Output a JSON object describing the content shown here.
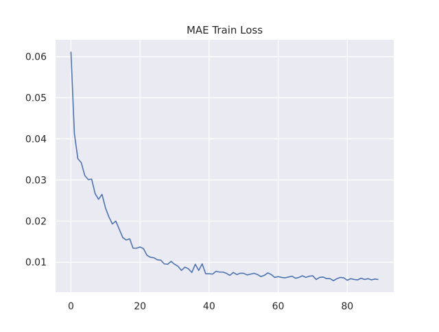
{
  "chart_data": {
    "type": "line",
    "title": "MAE Train Loss",
    "xlabel": "",
    "ylabel": "",
    "xlim": [
      -4.45,
      93.45
    ],
    "ylim": [
      0.0027,
      0.0641
    ],
    "xticks": [
      0,
      20,
      40,
      60,
      80
    ],
    "xtick_labels": [
      "0",
      "20",
      "40",
      "60",
      "80"
    ],
    "yticks": [
      0.01,
      0.02,
      0.03,
      0.04,
      0.05,
      0.06
    ],
    "ytick_labels": [
      "0.01",
      "0.02",
      "0.03",
      "0.04",
      "0.05",
      "0.06"
    ],
    "grid": true,
    "legend": "none",
    "colors": {
      "plot_background": "#eaeaf2",
      "grid": "#ffffff",
      "line": "#4c72b0"
    },
    "series": [
      {
        "x": [
          0,
          1,
          2,
          3,
          4,
          5,
          6,
          7,
          8,
          9,
          10,
          11,
          12,
          13,
          14,
          15,
          16,
          17,
          18,
          19,
          20,
          21,
          22,
          23,
          24,
          25,
          26,
          27,
          28,
          29,
          30,
          31,
          32,
          33,
          34,
          35,
          36,
          37,
          38,
          39,
          40,
          41,
          42,
          43,
          44,
          45,
          46,
          47,
          48,
          49,
          50,
          51,
          52,
          53,
          54,
          55,
          56,
          57,
          58,
          59,
          60,
          61,
          62,
          63,
          64,
          65,
          66,
          67,
          68,
          69,
          70,
          71,
          72,
          73,
          74,
          75,
          76,
          77,
          78,
          79,
          80,
          81,
          82,
          83,
          84,
          85,
          86,
          87,
          88,
          89
        ],
        "values": [
          0.0612,
          0.0413,
          0.0352,
          0.0342,
          0.0311,
          0.0301,
          0.0302,
          0.0267,
          0.0253,
          0.0265,
          0.0232,
          0.021,
          0.0193,
          0.02,
          0.018,
          0.016,
          0.0154,
          0.0157,
          0.0134,
          0.0134,
          0.0137,
          0.0133,
          0.0117,
          0.0112,
          0.0111,
          0.0106,
          0.0105,
          0.0096,
          0.0095,
          0.0102,
          0.0095,
          0.009,
          0.008,
          0.0088,
          0.0084,
          0.0075,
          0.0095,
          0.008,
          0.0096,
          0.0072,
          0.0072,
          0.0071,
          0.0078,
          0.0076,
          0.0076,
          0.0073,
          0.0068,
          0.0075,
          0.007,
          0.0073,
          0.0073,
          0.0069,
          0.0071,
          0.0073,
          0.007,
          0.0065,
          0.0068,
          0.0074,
          0.007,
          0.0063,
          0.0065,
          0.0063,
          0.0062,
          0.0064,
          0.0066,
          0.0061,
          0.0063,
          0.0067,
          0.0063,
          0.0066,
          0.0067,
          0.0058,
          0.0063,
          0.0064,
          0.006,
          0.006,
          0.0055,
          0.006,
          0.0063,
          0.0062,
          0.0056,
          0.006,
          0.0058,
          0.0057,
          0.0061,
          0.0058,
          0.006,
          0.0057,
          0.0059,
          0.0058
        ]
      }
    ]
  }
}
